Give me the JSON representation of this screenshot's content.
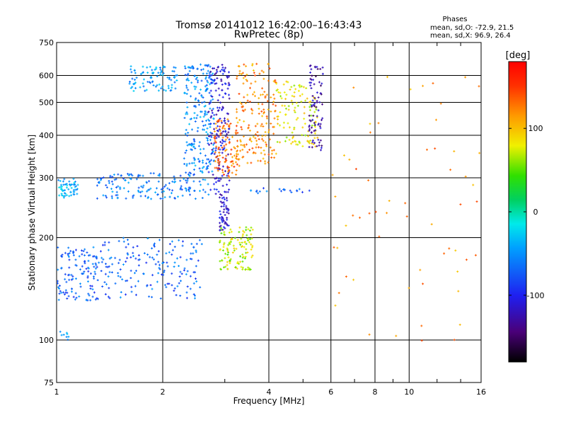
{
  "header": {
    "title_line1": "Tromsø 20141012 16:42:00–16:43:43",
    "title_line2": "RwPretec (8p)"
  },
  "stats": {
    "heading": "Phases",
    "line_o": "mean, sd,O: -72.9, 21.5",
    "line_x": "mean, sd,X:  96.9, 26.4"
  },
  "colorbar": {
    "unit_label": "[deg]",
    "tick_labels": [
      "100",
      "0",
      "-100"
    ],
    "tick_values": [
      100,
      0,
      -100
    ],
    "range": [
      -180,
      180
    ]
  },
  "chart_data": {
    "type": "scatter",
    "title": "Tromsø 20141012 16:42:00–16:43:43",
    "subtitle": "RwPretec (8p)",
    "xlabel": "Frequency [MHz]",
    "ylabel": "Stationary phase Virtual Height [km]",
    "xscale": "log",
    "yscale": "log",
    "xlim": [
      1,
      16
    ],
    "ylim": [
      75,
      750
    ],
    "xticks": [
      1,
      2,
      4,
      6,
      8,
      10,
      16
    ],
    "xtick_labels": [
      "1",
      "2",
      "4",
      "6",
      "8",
      "10",
      "16"
    ],
    "yticks": [
      75,
      100,
      200,
      300,
      400,
      500,
      600,
      750
    ],
    "ytick_labels": [
      "75",
      "100",
      "200",
      "300",
      "400",
      "500",
      "600",
      "750"
    ],
    "grid": true,
    "color_encoding": "phase (deg)",
    "clusters": [
      {
        "f": [
          1.0,
          1.15
        ],
        "h": [
          262,
          298
        ],
        "phase": -40,
        "n": 60
      },
      {
        "f": [
          1.0,
          1.1
        ],
        "h": [
          100,
          108
        ],
        "phase": -40,
        "n": 8
      },
      {
        "f": [
          1.0,
          1.3
        ],
        "h": [
          130,
          190
        ],
        "phase": -70,
        "n": 120
      },
      {
        "f": [
          1.3,
          2.6
        ],
        "h": [
          132,
          200
        ],
        "phase": -70,
        "n": 180
      },
      {
        "f": [
          1.3,
          2.7
        ],
        "h": [
          260,
          310
        ],
        "phase": -60,
        "n": 160
      },
      {
        "f": [
          1.6,
          2.2
        ],
        "h": [
          540,
          640
        ],
        "phase": -45,
        "n": 90
      },
      {
        "f": [
          2.3,
          2.8
        ],
        "h": [
          310,
          650
        ],
        "phase": -55,
        "n": 220
      },
      {
        "f": [
          2.7,
          3.1
        ],
        "h": [
          250,
          650
        ],
        "phase": -110,
        "n": 180
      },
      {
        "f": [
          2.8,
          3.3
        ],
        "h": [
          300,
          450
        ],
        "phase": 130,
        "n": 100
      },
      {
        "f": [
          3.2,
          4.2
        ],
        "h": [
          330,
          650
        ],
        "phase": 120,
        "n": 180
      },
      {
        "f": [
          2.9,
          3.6
        ],
        "h": [
          160,
          215
        ],
        "phase": 70,
        "n": 120
      },
      {
        "f": [
          2.9,
          3.1
        ],
        "h": [
          210,
          250
        ],
        "phase": -110,
        "n": 40
      },
      {
        "f": [
          4.2,
          5.5
        ],
        "h": [
          370,
          580
        ],
        "phase": 80,
        "n": 120
      },
      {
        "f": [
          5.2,
          5.7
        ],
        "h": [
          360,
          650
        ],
        "phase": -130,
        "n": 80
      },
      {
        "f": [
          3.5,
          5.5
        ],
        "h": [
          270,
          280
        ],
        "phase": -70,
        "n": 20
      },
      {
        "f": [
          6.0,
          16.0
        ],
        "h": [
          95,
          680
        ],
        "phase": 120,
        "n": 60
      }
    ]
  }
}
